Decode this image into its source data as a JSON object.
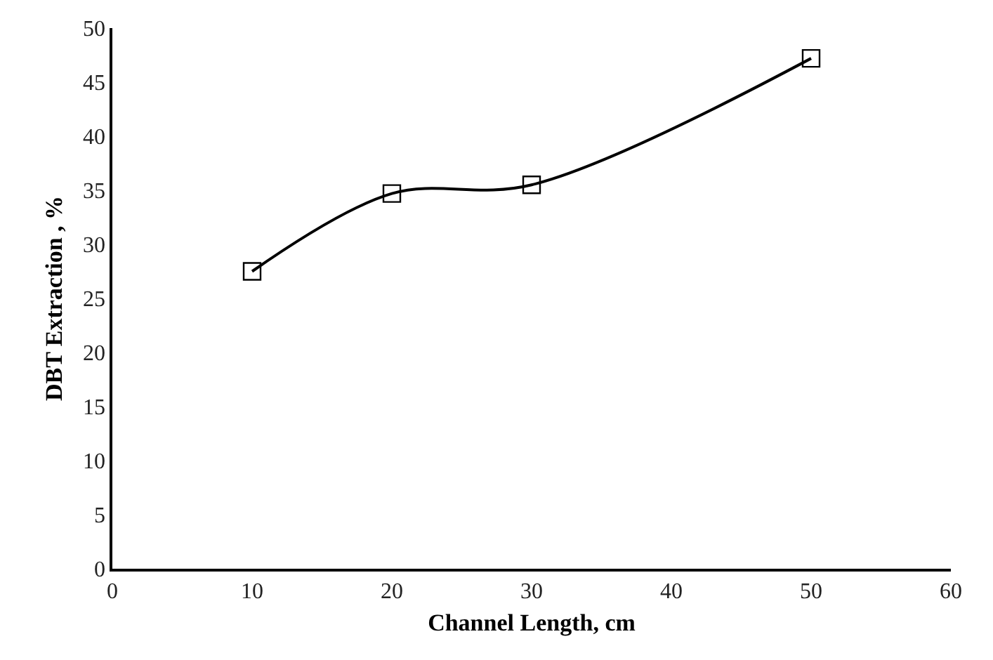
{
  "chart_data": {
    "type": "line",
    "xlabel": "Channel Length, cm",
    "ylabel": "DBT Extraction , %",
    "x": [
      10,
      20,
      30,
      50
    ],
    "series": [
      {
        "color": "#000000",
        "values": [
          27.5,
          34.7,
          35.5,
          47.2
        ]
      }
    ],
    "xlim": [
      0,
      60
    ],
    "xticks": [
      0,
      10,
      20,
      30,
      40,
      50,
      60
    ],
    "ylim": [
      0,
      50
    ],
    "yticks": [
      0,
      5,
      10,
      15,
      20,
      25,
      30,
      35,
      40,
      45,
      50
    ],
    "grid": false,
    "marker": "square",
    "line_style": "solid"
  }
}
